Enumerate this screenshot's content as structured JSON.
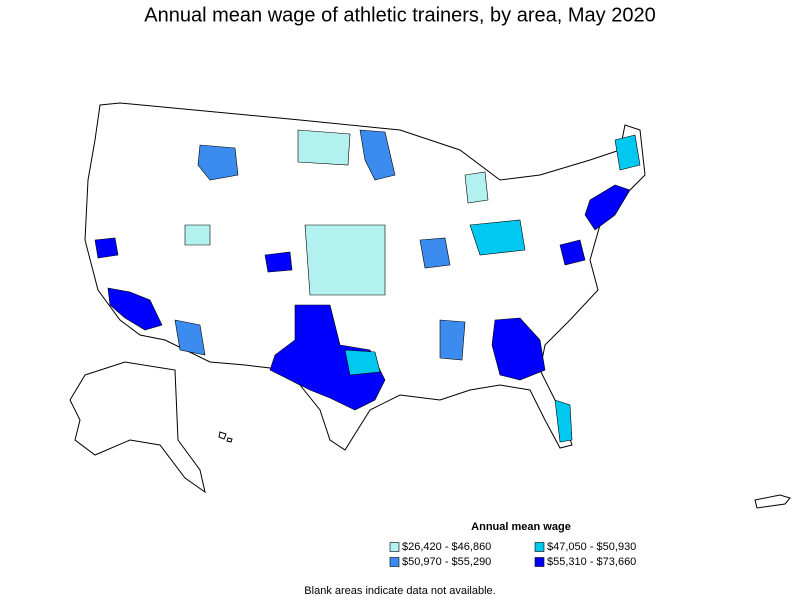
{
  "title": "Annual mean wage of athletic trainers, by area, May 2020",
  "legend": {
    "title": "Annual mean wage",
    "items": [
      {
        "label": "$26,420 - $46,860",
        "color": "#b3f0f0"
      },
      {
        "label": "$47,050 - $50,930",
        "color": "#00c8f0"
      },
      {
        "label": "$50,970 - $55,290",
        "color": "#3c8cf0"
      },
      {
        "label": "$55,310 - $73,660",
        "color": "#0000ff"
      }
    ]
  },
  "note": "Blank areas indicate data not available."
}
